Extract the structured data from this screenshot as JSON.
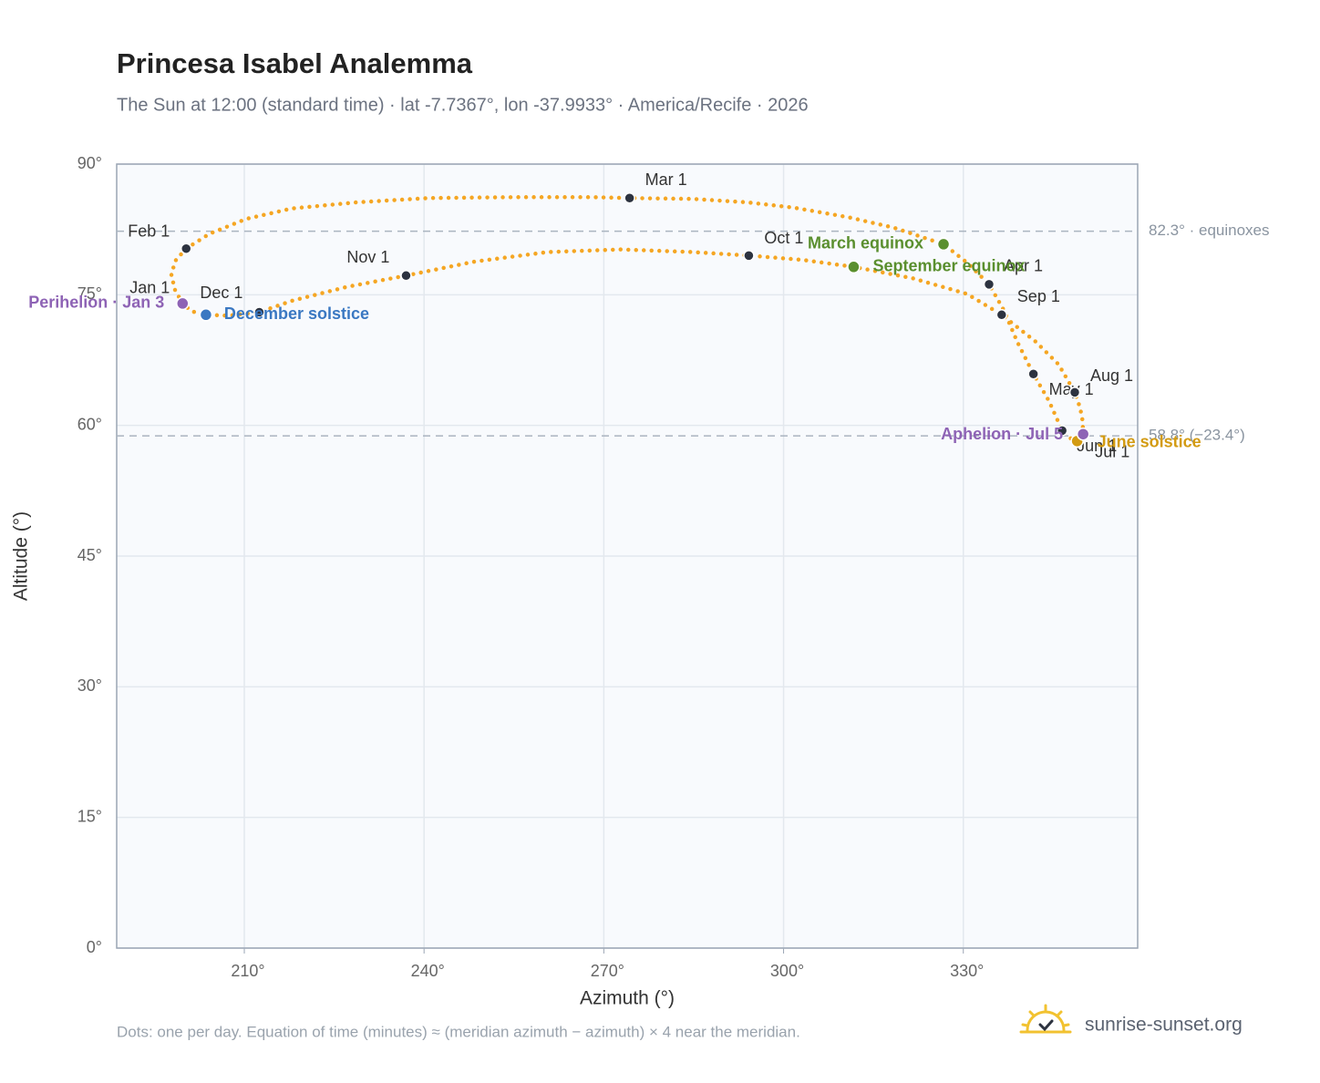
{
  "chart_data": {
    "type": "scatter",
    "title": "Princesa Isabel Analemma",
    "subtitle": "The Sun at 12:00 (standard time) · lat -7.7367°, lon -37.9933° · America/Recife · 2026",
    "x_label": "Azimuth (°)",
    "y_label": "Altitude (°)",
    "xlim": [
      188.7,
      359.1
    ],
    "ylim": [
      0,
      90
    ],
    "xticks": [
      {
        "value": 210,
        "label": "210°"
      },
      {
        "value": 240,
        "label": "240°"
      },
      {
        "value": 270,
        "label": "270°"
      },
      {
        "value": 300,
        "label": "300°"
      },
      {
        "value": 330,
        "label": "330°"
      }
    ],
    "yticks": [
      {
        "value": 0,
        "label": "0°"
      },
      {
        "value": 15,
        "label": "15°"
      },
      {
        "value": 30,
        "label": "30°"
      },
      {
        "value": 45,
        "label": "45°"
      },
      {
        "value": 60,
        "label": "60°"
      },
      {
        "value": 75,
        "label": "75°"
      },
      {
        "value": 90,
        "label": "90°"
      }
    ],
    "grid": true,
    "path": {
      "color": "#f5a623",
      "x": [
        199.7,
        198.4,
        197.8,
        198.6,
        200.3,
        204.2,
        210.3,
        217.9,
        228.6,
        240.8,
        254.5,
        268.2,
        274.3,
        284.9,
        294.1,
        301.7,
        310.8,
        318.4,
        326.7,
        330.6,
        334.3,
        336.7,
        339.0,
        341.7,
        344.3,
        346.5,
        348.1,
        349.0,
        349.8,
        350.0,
        349.5,
        348.6,
        345.9,
        342.1,
        336.4,
        330.6,
        321.5,
        311.7,
        303.2,
        294.2,
        284.9,
        272.8,
        260.6,
        248.4,
        237.0,
        227.1,
        217.9,
        212.5,
        207.3,
        203.6,
        201.2,
        199.7
      ],
      "y": [
        74.0,
        75.6,
        77.4,
        79.0,
        80.3,
        82.0,
        83.7,
        84.9,
        85.6,
        86.1,
        86.2,
        86.2,
        86.1,
        86.0,
        85.6,
        85.0,
        83.9,
        82.7,
        80.8,
        78.7,
        76.2,
        73.3,
        69.6,
        65.9,
        62.8,
        59.4,
        58.4,
        58.2,
        58.8,
        60.2,
        62.0,
        63.8,
        67.0,
        69.6,
        72.7,
        75.1,
        76.9,
        78.2,
        79.0,
        79.5,
        79.9,
        80.2,
        79.9,
        78.8,
        77.2,
        75.9,
        74.3,
        73.0,
        72.6,
        72.7,
        73.1,
        74.0
      ]
    },
    "markers": {
      "color": "#2d3340",
      "points": [
        {
          "label": "Jan 1",
          "x": 199.7,
          "y": 74.0
        },
        {
          "label": "Feb 1",
          "x": 200.3,
          "y": 80.3
        },
        {
          "label": "Mar 1",
          "x": 274.3,
          "y": 86.1
        },
        {
          "label": "Apr 1",
          "x": 334.3,
          "y": 76.2
        },
        {
          "label": "May 1",
          "x": 341.7,
          "y": 65.9
        },
        {
          "label": "Jun 1",
          "x": 346.5,
          "y": 59.4
        },
        {
          "label": "Jul 1",
          "x": 349.4,
          "y": 58.4
        },
        {
          "label": "Aug 1",
          "x": 348.6,
          "y": 63.8
        },
        {
          "label": "Sep 1",
          "x": 336.4,
          "y": 72.7
        },
        {
          "label": "Oct 1",
          "x": 294.2,
          "y": 79.5
        },
        {
          "label": "Nov 1",
          "x": 237.0,
          "y": 77.2
        },
        {
          "label": "Dec 1",
          "x": 212.5,
          "y": 73.0
        }
      ]
    },
    "events": [
      {
        "label": "March equinox",
        "x": 326.7,
        "y": 80.8,
        "color": "#5a8f2e"
      },
      {
        "label": "September equinox",
        "x": 311.7,
        "y": 78.2,
        "color": "#5a8f2e"
      },
      {
        "label": "December solstice",
        "x": 203.6,
        "y": 72.7,
        "color": "#3a78c2"
      },
      {
        "label": "June solstice",
        "x": 349.0,
        "y": 58.2,
        "color": "#d39b12"
      },
      {
        "label": "Perihelion · Jan 3",
        "x": 199.7,
        "y": 74.0,
        "color": "#8e63b5"
      },
      {
        "label": "Aphelion · Jul 5",
        "x": 350.0,
        "y": 59.0,
        "color": "#8e63b5"
      }
    ],
    "reference_lines": [
      {
        "value": 82.3,
        "label": "82.3° · equinoxes"
      },
      {
        "value": 58.8,
        "label": "58.8° (−23.4°)"
      }
    ],
    "note": "Dots: one per day. Equation of time (minutes) ≈ (meridian azimuth − azimuth) × 4 near the meridian.",
    "brand": "sunrise-sunset.org"
  }
}
